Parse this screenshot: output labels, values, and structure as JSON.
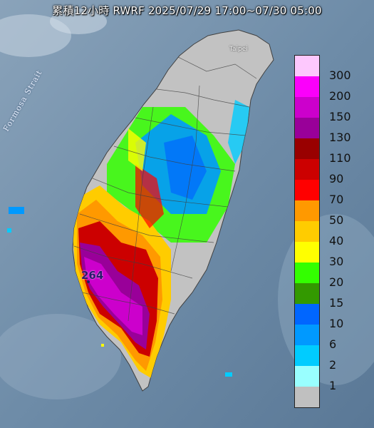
{
  "title": "累積12小時 RWRF 2025/07/29 17:00~07/30 05:00",
  "sea_label": "Formosa Strait",
  "cities": {
    "taipei": "Taipei"
  },
  "max_value_label": "264",
  "legend": {
    "unit_levels": [
      {
        "label": "300",
        "color": "#fdc8fd"
      },
      {
        "label": "200",
        "color": "#fb00fb"
      },
      {
        "label": "150",
        "color": "#cc00cc"
      },
      {
        "label": "130",
        "color": "#990099"
      },
      {
        "label": "110",
        "color": "#990000"
      },
      {
        "label": "90",
        "color": "#cc0000"
      },
      {
        "label": "70",
        "color": "#ff0000"
      },
      {
        "label": "50",
        "color": "#ff9900"
      },
      {
        "label": "40",
        "color": "#ffcc00"
      },
      {
        "label": "30",
        "color": "#ffff00"
      },
      {
        "label": "20",
        "color": "#33ff00"
      },
      {
        "label": "15",
        "color": "#339900"
      },
      {
        "label": "10",
        "color": "#0066ff"
      },
      {
        "label": "6",
        "color": "#0099ff"
      },
      {
        "label": "2",
        "color": "#00ccff"
      },
      {
        "label": "1",
        "color": "#99ffff"
      },
      {
        "label": "",
        "color": "#c0c0c0"
      }
    ]
  }
}
